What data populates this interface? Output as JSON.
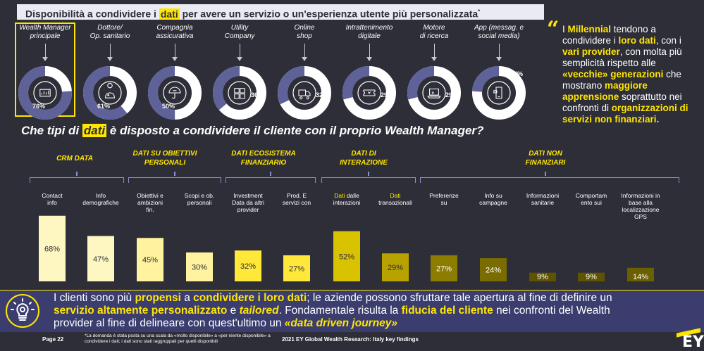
{
  "top_title": {
    "pre": "Disponibilità a condividere i ",
    "highlight": "dati",
    "post": " per avere un servizio o un'esperienza utente più personalizzata",
    "sup": "*"
  },
  "donuts": [
    {
      "label1": "Wealth Manager",
      "label2": "principale",
      "pct": "76%",
      "value": 76,
      "icon": "chart-board-icon",
      "selected": true
    },
    {
      "label1": "Dottore/",
      "label2": "Op. sanitario",
      "pct": "61%",
      "value": 61,
      "icon": "doctor-icon"
    },
    {
      "label1": "Compagnia",
      "label2": "assicurativa",
      "pct": "50%",
      "value": 50,
      "icon": "umbrella-icon"
    },
    {
      "label1": "Utility",
      "label2": "Company",
      "pct": "36%",
      "value": 36,
      "icon": "utilities-icon"
    },
    {
      "label1": "Online",
      "label2": "shop",
      "pct": "32%",
      "value": 32,
      "icon": "truck-icon"
    },
    {
      "label1": "Intrattenimento",
      "label2": "digitale",
      "pct": "29%",
      "value": 29,
      "icon": "ticket-icon"
    },
    {
      "label1": "Motore",
      "label2": "di ricerca",
      "pct": "29%",
      "value": 29,
      "icon": "laptop-icon"
    },
    {
      "label1": "App (messag. e",
      "label2": "social media)",
      "pct": "24%",
      "value": 24,
      "icon": "phone-icon"
    }
  ],
  "quote": {
    "parts": [
      {
        "t": "I ",
        "b": false
      },
      {
        "t": "Millennial",
        "b": true
      },
      {
        "t": " tendono a condividere i ",
        "b": false
      },
      {
        "t": "loro dati",
        "b": true
      },
      {
        "t": ", con i ",
        "b": false
      },
      {
        "t": "vari provider",
        "b": true
      },
      {
        "t": ", con molta più semplicità rispetto alle ",
        "b": false
      },
      {
        "t": "«vecchie» generazioni",
        "b": true
      },
      {
        "t": " che mostrano ",
        "b": false
      },
      {
        "t": "maggiore apprensione",
        "b": true
      },
      {
        "t": " soprattutto nei confronti di ",
        "b": false
      },
      {
        "t": "organizzazioni di servizi non finanziari.",
        "b": true
      }
    ]
  },
  "section2": {
    "pre": "Che tipi di ",
    "highlight": "dati",
    "post": " è disposto a condividere il cliente con il proprio Wealth Manager?"
  },
  "categories": [
    {
      "line1": "CRM DATA",
      "line2": ""
    },
    {
      "line1": "DATI SU OBIETTIVI",
      "line2": "PERSONALI"
    },
    {
      "line1": "DATI ECOSISTEMA",
      "line2": "FINANZIARIO"
    },
    {
      "line1": "DATI DI",
      "line2": "INTERAZIONE"
    },
    {
      "line1": "DATI NON",
      "line2": "FINANZIARI"
    }
  ],
  "chart_data": {
    "type": "bar",
    "categories": [
      "Contact info",
      "Info demografiche",
      "Obiettivi e ambizioni fin.",
      "Scopi e ob. personali",
      "Investment Data da altri provider",
      "Prod. E servizi con",
      "Dati dalle interazioni",
      "Dati transazionali",
      "Preferenze su",
      "Info su campagne",
      "Informazioni sanitarie",
      "Comportamento sui",
      "Informazioni in base alla localizzazione GPS"
    ],
    "values": [
      68,
      47,
      45,
      30,
      32,
      27,
      52,
      29,
      27,
      24,
      9,
      9,
      14
    ],
    "value_labels": [
      "68%",
      "47%",
      "45%",
      "30%",
      "32%",
      "27%",
      "52%",
      "29%",
      "27%",
      "24%",
      "9%",
      "9%",
      "14%"
    ],
    "labels": [
      [
        "Contact",
        "info"
      ],
      [
        "Info",
        "demografiche"
      ],
      [
        "Obiettivi e",
        "ambizioni",
        "fin."
      ],
      [
        "Scopi e ob.",
        "personali"
      ],
      [
        "Investment",
        "Data da altri",
        "provider"
      ],
      [
        "Prod. E",
        "servizi con"
      ],
      [
        "Dati dalle",
        "interazioni"
      ],
      [
        "Dati",
        "transazionali"
      ],
      [
        "Preferenze",
        "su"
      ],
      [
        "Info su",
        "campagne"
      ],
      [
        "Informazioni",
        "sanitarie"
      ],
      [
        "Comportam",
        "ento sui"
      ],
      [
        "Informazioni in",
        "base alla",
        "localizzazione GPS"
      ]
    ],
    "colors": [
      "#fff7c2",
      "#fff7c2",
      "#fff3a0",
      "#fff3a0",
      "#ffe83a",
      "#ffe83a",
      "#d9c200",
      "#b8a200",
      "#8c7d00",
      "#7a6c00",
      "#5e5400",
      "#5e5400",
      "#6b6000"
    ],
    "ylim": [
      0,
      70
    ]
  },
  "banner": {
    "line1": [
      {
        "t": "I clienti sono più ",
        "s": "n"
      },
      {
        "t": "propensi",
        "s": "y"
      },
      {
        "t": " a ",
        "s": "n"
      },
      {
        "t": "condividere i loro dati",
        "s": "y"
      },
      {
        "t": "; le aziende possono sfruttare tale apertura al fine di definire un",
        "s": "n"
      }
    ],
    "line2": [
      {
        "t": "servizio altamente personalizzato",
        "s": "y"
      },
      {
        "t": " e ",
        "s": "n"
      },
      {
        "t": "tailored",
        "s": "yi"
      },
      {
        "t": ". Fondamentale risulta la ",
        "s": "n"
      },
      {
        "t": "fiducia del cliente",
        "s": "y"
      },
      {
        "t": " nei confronti del Wealth",
        "s": "n"
      }
    ],
    "line3": [
      {
        "t": "provider al fine di delineare con quest'ultimo un ",
        "s": "n"
      },
      {
        "t": "«data driven journey»",
        "s": "yi"
      }
    ]
  },
  "footer": {
    "page": "Page 22",
    "note": "*La domanda è stata posta su una scala da «molto disponibile» a «per niente disponibile» a condividere i dati; i dati sono stati raggruppati per quelli disponibili",
    "center": "2021 EY Global Wealth Research: Italy key findings",
    "logo": "EY"
  },
  "colors": {
    "background": "#2e2e38",
    "accent": "#ffe600",
    "banner": "#3a3d6e",
    "donut_track": "#ffffff",
    "donut_fill": "#5f6299"
  }
}
